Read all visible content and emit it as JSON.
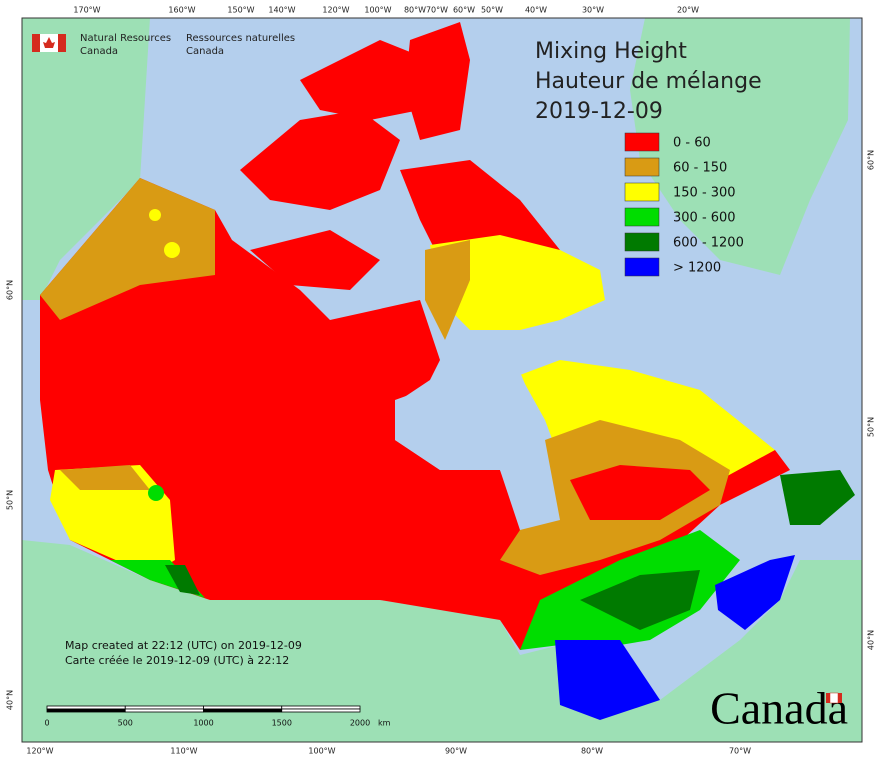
{
  "header": {
    "org_en": [
      "Natural Resources",
      "Canada"
    ],
    "org_fr": [
      "Ressources naturelles",
      "Canada"
    ]
  },
  "title": {
    "line1": "Mixing Height",
    "line2": "Hauteur de mélange",
    "date": "2019-12-09"
  },
  "legend": {
    "items": [
      {
        "label": "0 - 60",
        "color": "#ff0000"
      },
      {
        "label": "60 - 150",
        "color": "#d99b14"
      },
      {
        "label": "150 - 300",
        "color": "#ffff00"
      },
      {
        "label": "300 - 600",
        "color": "#00dd00"
      },
      {
        "label": "600 - 1200",
        "color": "#007a00"
      },
      {
        "label": "> 1200",
        "color": "#0000ff"
      }
    ]
  },
  "graticule": {
    "top": [
      "170°W",
      "160°W",
      "150°W",
      "140°W",
      "120°W",
      "100°W",
      "80°W",
      "70°W",
      "60°W",
      "50°W",
      "40°W",
      "30°W",
      "20°W"
    ],
    "bottom": [
      "120°W",
      "110°W",
      "100°W",
      "90°W",
      "80°W",
      "70°W"
    ],
    "left": [
      "60°N",
      "50°N",
      "40°N"
    ],
    "right": [
      "60°N",
      "50°N",
      "40°N"
    ]
  },
  "notes": [
    "Map created at 22:12 (UTC) on 2019-12-09",
    "Carte créée le 2019-12-09 (UTC) à 22:12"
  ],
  "scale": {
    "labels": [
      0,
      500,
      1000,
      1500,
      2000
    ],
    "unit": "km"
  },
  "wordmark": "Canada"
}
